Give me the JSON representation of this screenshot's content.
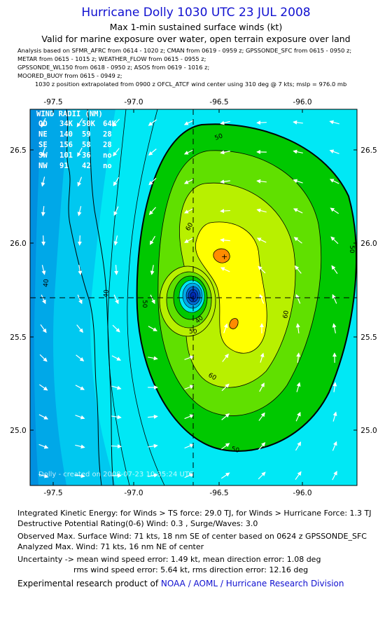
{
  "header": {
    "title": "Hurricane Dolly 1030 UTC 23 JUL 2008",
    "subtitle": "Max 1-min sustained surface winds (kt)",
    "validity": "Valid for marine exposure over water, open terrain exposure over land",
    "analysis_lines": [
      "Analysis based on   SFMR_AFRC from 0614 - 1020 z;  CMAN from 0619 - 0959 z;  GPSSONDE_SFC from 0615 - 0950 z;",
      "METAR from 0615 - 1015 z;  WEATHER_FLOW from 0615 - 0955 z;",
      "GPSSONDE_WL150 from 0618 - 0950 z;  ASOS from 0619 - 1016 z;",
      "MOORED_BUOY from 0615 - 0949 z;"
    ],
    "position_note": "1030 z position extrapolated from 0900 z OFCL_ATCF wind center using 310 deg @ 7 kts; mslp = 976.0 mb"
  },
  "map": {
    "lon_ticks": [
      "-97.5",
      "-97.0",
      "-96.5",
      "-96.0"
    ],
    "lat_ticks": [
      "26.5",
      "26.0",
      "25.5",
      "25.0"
    ],
    "lon_range": [
      -97.62,
      -95.9
    ],
    "lat_range": [
      24.71,
      26.73
    ],
    "center": {
      "lon": -96.65,
      "lat": 25.71
    },
    "max_wind_marker": {
      "lon": -96.49,
      "lat": 25.92
    },
    "contour_labels": [
      "50",
      "60",
      "40",
      "50",
      "60",
      "50",
      "40",
      "50",
      "60",
      "40",
      "50"
    ],
    "wind_radii": {
      "title": "WIND RADII (NM)",
      "rows": [
        [
          "QD",
          "34K",
          "50K",
          "64K"
        ],
        [
          "NE",
          "140",
          "59",
          "28"
        ],
        [
          "SE",
          "156",
          "58",
          "28"
        ],
        [
          "SW",
          "101",
          "36",
          "no"
        ],
        [
          "NW",
          "91",
          "42",
          "no"
        ]
      ]
    },
    "credit": "Dolly - created on 2008-07-23 10:35:24 UTC",
    "colors": {
      "ts_light": "#00e8f5",
      "ts_mid": "#00c8f0",
      "ts_dark": "#00a8e8",
      "ts_darker": "#0090e0",
      "green_dark": "#00c800",
      "green_mid": "#60e000",
      "yellow_green": "#b8f000",
      "yellow": "#ffff00",
      "orange": "#ff8c00",
      "eye_blue": "#0028b0"
    }
  },
  "stats": {
    "ike": "Integrated Kinetic Energy:  for Winds > TS force: 29.0 TJ,  for Winds > Hurricane Force: 1.3 TJ",
    "dpr": "Destructive Potential Rating(0-6)   Wind: 0.3 , Surge/Waves: 3.0",
    "observed": "Observed Max. Surface Wind: 71 kts, 18 nm SE of center based on 0624 z GPSSONDE_SFC",
    "analyzed": "Analyzed Max. Wind: 71 kts, 16 nm NE of center",
    "uncertainty_1": "Uncertainty -> mean wind speed error: 1.49 kt,   mean direction error: 1.08 deg",
    "uncertainty_2": "rms wind speed error: 5.64 kt,   rms direction error: 12.16 deg"
  },
  "footer": {
    "prefix": "Experimental research product of ",
    "org": "NOAA / AOML / Hurricane Research Division"
  }
}
